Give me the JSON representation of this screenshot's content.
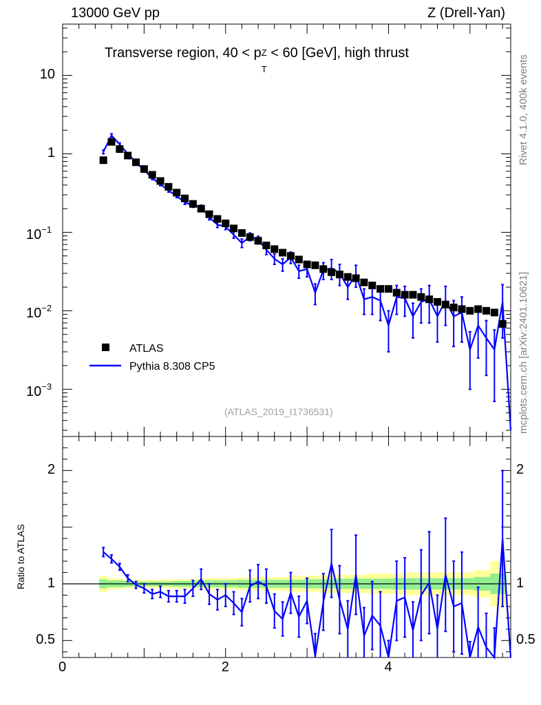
{
  "header": {
    "left": "13000 GeV pp",
    "right": "Z (Drell-Yan)"
  },
  "side_labels": {
    "rivet": "Rivet 4.1.0,  400k events",
    "source": "mcplots.cern.ch [arXiv:2401.10621]"
  },
  "colors": {
    "data": "#000000",
    "mc": "#0000ff",
    "band_inner": "#90ee90",
    "band_outer": "#ffff99",
    "watermark": "#a0a0a0"
  },
  "chart_data": [
    {
      "type": "scatter",
      "panel": "main",
      "title": "Transverse region, 40 < p_T^Z < 60 [GeV], high thrust",
      "title_parts": {
        "pre": "Transverse region, 40 < p",
        "sup": "Z",
        "sub": "T",
        "post": " < 60 [GeV], high thrust"
      },
      "watermark": "(ATLAS_2019_I1736531)",
      "yscale": "log",
      "ylim": [
        0.00025,
        45
      ],
      "xlim": [
        0,
        5.5
      ],
      "legend_position": "bottom-left",
      "y_ticks": [
        {
          "value": 10,
          "label": "10"
        },
        {
          "value": 1,
          "label": "1"
        },
        {
          "value": 0.1,
          "base": "10",
          "exp": "−1"
        },
        {
          "value": 0.01,
          "base": "10",
          "exp": "−2"
        },
        {
          "value": 0.001,
          "base": "10",
          "exp": "−3"
        }
      ],
      "series": [
        {
          "name": "ATLAS",
          "style": "square-markers",
          "x": [
            0.5,
            0.6,
            0.7,
            0.8,
            0.9,
            1.0,
            1.1,
            1.2,
            1.3,
            1.4,
            1.5,
            1.6,
            1.7,
            1.8,
            1.9,
            2.0,
            2.1,
            2.2,
            2.3,
            2.4,
            2.5,
            2.6,
            2.7,
            2.8,
            2.9,
            3.0,
            3.1,
            3.2,
            3.3,
            3.4,
            3.5,
            3.6,
            3.7,
            3.8,
            3.9,
            4.0,
            4.1,
            4.2,
            4.3,
            4.4,
            4.5,
            4.6,
            4.7,
            4.8,
            4.9,
            5.0,
            5.1,
            5.2,
            5.3,
            5.4
          ],
          "values": [
            0.83,
            1.42,
            1.15,
            0.95,
            0.78,
            0.64,
            0.54,
            0.45,
            0.38,
            0.32,
            0.27,
            0.23,
            0.2,
            0.17,
            0.148,
            0.13,
            0.112,
            0.098,
            0.087,
            0.078,
            0.068,
            0.061,
            0.055,
            0.05,
            0.045,
            0.039,
            0.038,
            0.034,
            0.031,
            0.029,
            0.027,
            0.026,
            0.023,
            0.021,
            0.019,
            0.019,
            0.017,
            0.016,
            0.016,
            0.015,
            0.014,
            0.013,
            0.012,
            0.011,
            0.0105,
            0.01,
            0.0105,
            0.01,
            0.0095,
            0.0068
          ]
        },
        {
          "name": "Pythia 8.308 CP5",
          "style": "line-with-errors",
          "x": [
            0.5,
            0.6,
            0.7,
            0.8,
            0.9,
            1.0,
            1.1,
            1.2,
            1.3,
            1.4,
            1.5,
            1.6,
            1.7,
            1.8,
            1.9,
            2.0,
            2.1,
            2.2,
            2.3,
            2.4,
            2.5,
            2.6,
            2.7,
            2.8,
            2.9,
            3.0,
            3.1,
            3.2,
            3.3,
            3.4,
            3.5,
            3.6,
            3.7,
            3.8,
            3.9,
            4.0,
            4.1,
            4.2,
            4.3,
            4.4,
            4.5,
            4.6,
            4.7,
            4.8,
            4.9,
            5.0,
            5.1,
            5.2,
            5.3,
            5.4
          ],
          "values": [
            1.06,
            1.72,
            1.32,
            1.0,
            0.78,
            0.62,
            0.49,
            0.41,
            0.34,
            0.29,
            0.24,
            0.22,
            0.21,
            0.155,
            0.125,
            0.118,
            0.093,
            0.073,
            0.088,
            0.08,
            0.06,
            0.046,
            0.039,
            0.048,
            0.032,
            0.034,
            0.017,
            0.033,
            0.035,
            0.03,
            0.02,
            0.029,
            0.014,
            0.015,
            0.0135,
            0.0065,
            0.015,
            0.0145,
            0.0085,
            0.013,
            0.014,
            0.0085,
            0.0135,
            0.0085,
            0.0095,
            0.0032,
            0.0065,
            0.0045,
            0.0032,
            0.013
          ],
          "errors": [
            0.06,
            0.08,
            0.06,
            0.04,
            0.03,
            0.025,
            0.02,
            0.018,
            0.015,
            0.014,
            0.013,
            0.012,
            0.012,
            0.011,
            0.01,
            0.01,
            0.009,
            0.009,
            0.01,
            0.009,
            0.008,
            0.007,
            0.007,
            0.008,
            0.006,
            0.007,
            0.005,
            0.008,
            0.01,
            0.009,
            0.006,
            0.009,
            0.005,
            0.006,
            0.006,
            0.0035,
            0.006,
            0.006,
            0.004,
            0.006,
            0.007,
            0.0045,
            0.007,
            0.005,
            0.0055,
            0.0022,
            0.004,
            0.003,
            0.0025,
            0.0085
          ],
          "tail_end": [
            5.5,
            0.0003
          ]
        }
      ]
    },
    {
      "type": "line",
      "panel": "ratio",
      "ylabel": "Ratio to ATLAS",
      "xlim": [
        0,
        5.5
      ],
      "ylim": [
        0.35,
        2.3
      ],
      "x_ticks": [
        {
          "value": 0,
          "label": "0"
        },
        {
          "value": 2,
          "label": "2"
        },
        {
          "value": 4,
          "label": "4"
        }
      ],
      "y_ticks": [
        {
          "value": 0.5,
          "label": "0.5"
        },
        {
          "value": 1,
          "label": "1"
        },
        {
          "value": 2,
          "label": "2"
        }
      ],
      "reference_line": 1.0,
      "band": {
        "x": [
          0.5,
          0.6,
          0.7,
          0.8,
          0.9,
          1.0,
          1.1,
          1.2,
          1.3,
          1.4,
          1.5,
          1.6,
          1.7,
          1.8,
          1.9,
          2.0,
          2.1,
          2.2,
          2.3,
          2.4,
          2.5,
          2.6,
          2.7,
          2.8,
          2.9,
          3.0,
          3.1,
          3.2,
          3.3,
          3.4,
          3.5,
          3.6,
          3.7,
          3.8,
          3.9,
          4.0,
          4.1,
          4.2,
          4.3,
          4.4,
          4.5,
          4.6,
          4.7,
          4.8,
          4.9,
          5.0,
          5.1,
          5.2,
          5.3,
          5.4
        ],
        "inner": [
          0.04,
          0.03,
          0.03,
          0.025,
          0.02,
          0.02,
          0.02,
          0.02,
          0.02,
          0.025,
          0.025,
          0.025,
          0.03,
          0.03,
          0.03,
          0.03,
          0.03,
          0.035,
          0.035,
          0.035,
          0.035,
          0.035,
          0.035,
          0.035,
          0.035,
          0.04,
          0.04,
          0.04,
          0.04,
          0.045,
          0.045,
          0.045,
          0.045,
          0.045,
          0.045,
          0.045,
          0.05,
          0.05,
          0.05,
          0.05,
          0.05,
          0.05,
          0.05,
          0.05,
          0.05,
          0.05,
          0.06,
          0.06,
          0.09,
          0.09
        ],
        "outer": [
          0.07,
          0.05,
          0.045,
          0.04,
          0.035,
          0.035,
          0.035,
          0.035,
          0.04,
          0.04,
          0.04,
          0.045,
          0.045,
          0.05,
          0.05,
          0.05,
          0.05,
          0.055,
          0.055,
          0.06,
          0.06,
          0.06,
          0.06,
          0.07,
          0.07,
          0.07,
          0.07,
          0.08,
          0.08,
          0.08,
          0.08,
          0.08,
          0.08,
          0.09,
          0.09,
          0.09,
          0.09,
          0.1,
          0.1,
          0.1,
          0.1,
          0.1,
          0.1,
          0.1,
          0.1,
          0.1,
          0.12,
          0.12,
          0.2,
          0.2
        ]
      },
      "series": [
        {
          "name": "Pythia 8.308 CP5 / ATLAS",
          "x": [
            0.5,
            0.6,
            0.7,
            0.8,
            0.9,
            1.0,
            1.1,
            1.2,
            1.3,
            1.4,
            1.5,
            1.6,
            1.7,
            1.8,
            1.9,
            2.0,
            2.1,
            2.2,
            2.3,
            2.4,
            2.5,
            2.6,
            2.7,
            2.8,
            2.9,
            3.0,
            3.1,
            3.2,
            3.3,
            3.4,
            3.5,
            3.6,
            3.7,
            3.8,
            3.9,
            4.0,
            4.1,
            4.2,
            4.3,
            4.4,
            4.5,
            4.6,
            4.7,
            4.8,
            4.9,
            5.0,
            5.1,
            5.2,
            5.3,
            5.4
          ],
          "values": [
            1.28,
            1.22,
            1.15,
            1.05,
            0.99,
            0.96,
            0.91,
            0.93,
            0.89,
            0.89,
            0.89,
            0.96,
            1.04,
            0.91,
            0.86,
            0.9,
            0.83,
            0.75,
            0.98,
            1.02,
            0.98,
            0.76,
            0.69,
            0.92,
            0.71,
            0.85,
            0.36,
            0.84,
            1.18,
            0.86,
            0.6,
            1.08,
            0.54,
            0.72,
            0.63,
            0.3,
            0.85,
            0.88,
            0.59,
            0.9,
            1.01,
            0.6,
            1.08,
            0.8,
            0.83,
            0.29,
            0.62,
            0.44,
            0.31,
            1.4
          ],
          "errors": [
            0.04,
            0.035,
            0.03,
            0.03,
            0.03,
            0.04,
            0.04,
            0.05,
            0.05,
            0.05,
            0.06,
            0.07,
            0.09,
            0.09,
            0.09,
            0.1,
            0.1,
            0.12,
            0.14,
            0.15,
            0.15,
            0.15,
            0.15,
            0.18,
            0.18,
            0.2,
            0.2,
            0.25,
            0.3,
            0.3,
            0.25,
            0.35,
            0.25,
            0.3,
            0.3,
            0.2,
            0.35,
            0.35,
            0.25,
            0.4,
            0.45,
            0.3,
            0.5,
            0.4,
            0.45,
            0.2,
            0.35,
            0.3,
            0.3,
            0.6
          ],
          "tail_end": [
            5.5,
            0.3
          ]
        }
      ]
    }
  ]
}
